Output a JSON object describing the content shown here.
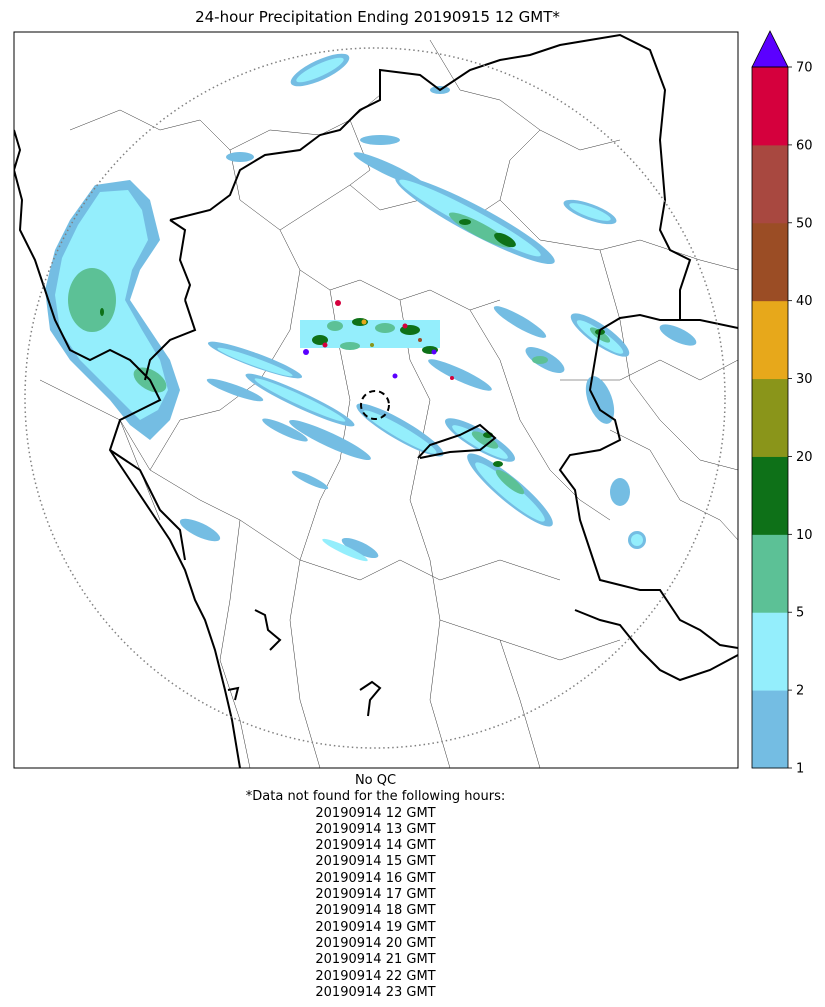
{
  "title": "24-hour Precipitation Ending 20190915 12 GMT*",
  "colorbar": {
    "ticks": [
      "1",
      "2",
      "5",
      "10",
      "20",
      "30",
      "40",
      "50",
      "60",
      "70"
    ],
    "colors": [
      "#74bde3",
      "#94eefc",
      "#5cc196",
      "#0e7118",
      "#8a951a",
      "#e7a81b",
      "#9b4d25",
      "#a84840",
      "#d5003d"
    ],
    "extend_color": "#5b00ff"
  },
  "map_colors": {
    "light_blue": "#74bde3",
    "cyan": "#94eefc",
    "green": "#5cc196",
    "dark_green": "#0e7118",
    "radar_range_ring": "#808080"
  },
  "notes": {
    "qc": "No QC",
    "missing_header": "*Data not found for the following hours:",
    "hours": [
      "20190914 12 GMT",
      "20190914 13 GMT",
      "20190914 14 GMT",
      "20190914 15 GMT",
      "20190914 16 GMT",
      "20190914 17 GMT",
      "20190914 18 GMT",
      "20190914 19 GMT",
      "20190914 20 GMT",
      "20190914 21 GMT",
      "20190914 22 GMT",
      "20190914 23 GMT"
    ]
  }
}
